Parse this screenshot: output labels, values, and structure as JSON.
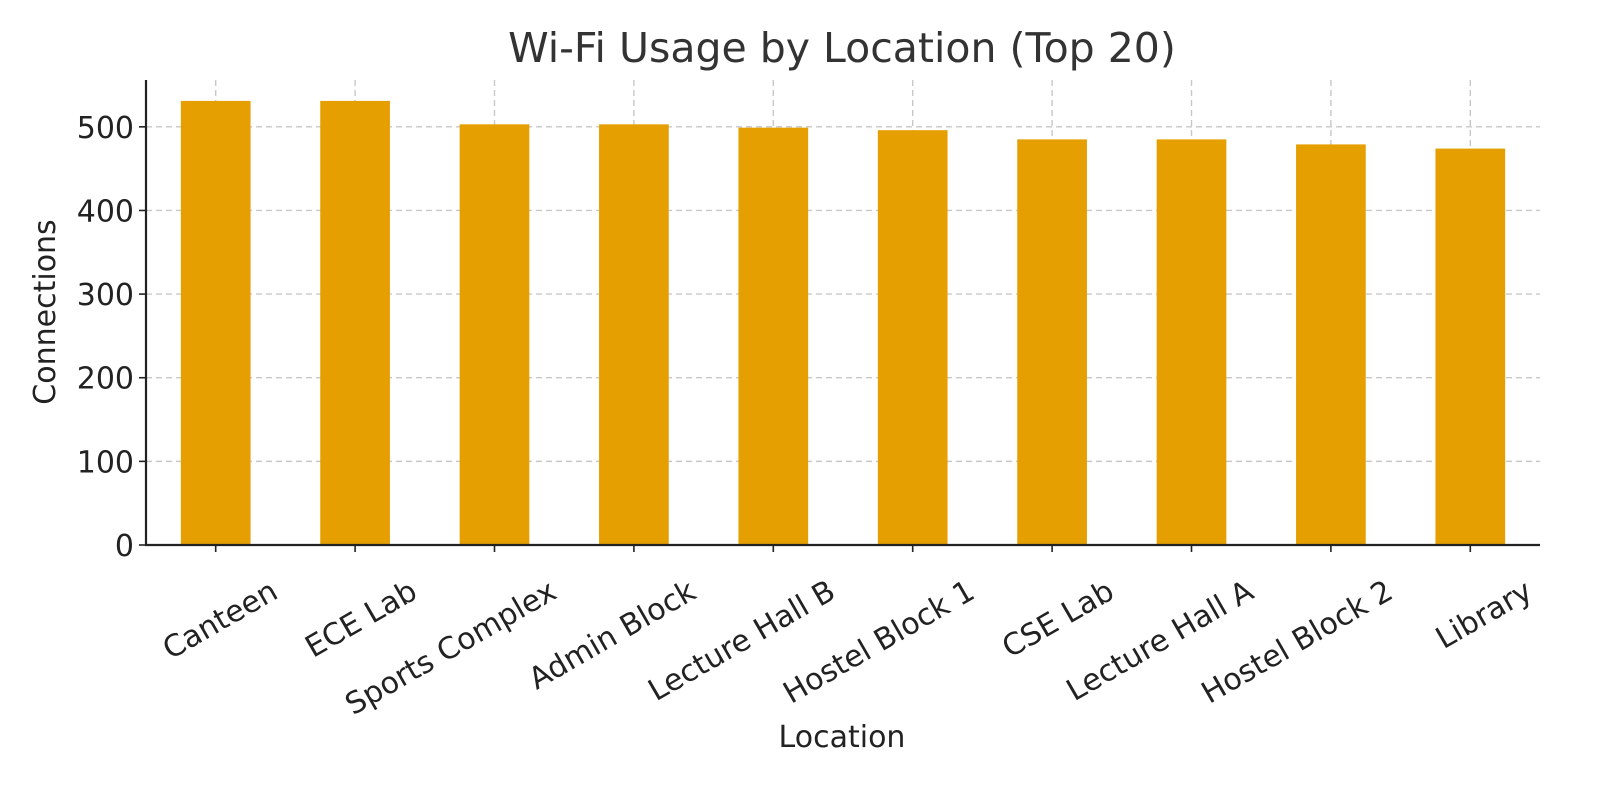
{
  "chart_data": {
    "type": "bar",
    "title": "Wi-Fi Usage by Location (Top 20)",
    "xlabel": "Location",
    "ylabel": "Connections",
    "categories": [
      "Canteen",
      "ECE Lab",
      "Sports Complex",
      "Admin Block",
      "Lecture Hall B",
      "Hostel Block 1",
      "CSE Lab",
      "Lecture Hall A",
      "Hostel Block 2",
      "Library"
    ],
    "values": [
      531,
      531,
      503,
      503,
      499,
      496,
      485,
      485,
      479,
      474
    ],
    "ylim": [
      0,
      556
    ],
    "yticks": [
      0,
      100,
      200,
      300,
      400,
      500
    ],
    "grid": true,
    "bar_color": "#e69f00"
  }
}
